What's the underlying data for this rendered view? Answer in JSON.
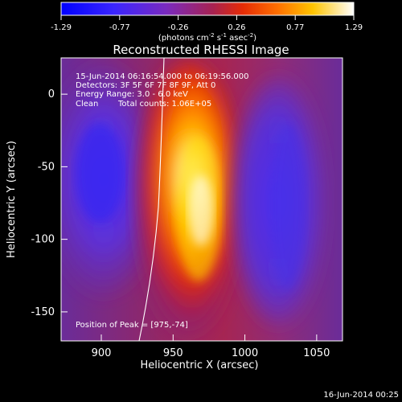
{
  "colorbar": {
    "tick_labels": [
      "-1.29",
      "-0.77",
      "-0.26",
      "0.26",
      "0.77",
      "1.29"
    ],
    "units_html": "(photons cm⁻² s⁻¹ asec⁻²)",
    "units_prefix": "(photons cm",
    "units_exp1": "-2",
    "units_mid1": " s",
    "units_exp2": "-1",
    "units_mid2": " asec",
    "units_exp3": "-2",
    "units_suffix": ")",
    "colors": [
      "#0000ff",
      "#6a1fff",
      "#a22070",
      "#ff3b00",
      "#ffb000",
      "#ffffff"
    ]
  },
  "title": "Reconstructed RHESSI Image",
  "info": {
    "time_range": "15-Jun-2014 06:16:54.000 to 06:19:56.000",
    "detectors": "Detectors: 3F 5F 6F 7F 8F 9F, Att 0",
    "energy": "Energy Range: 3.0 - 6.0 keV",
    "clean_label": "Clean",
    "total_counts": "Total counts: 1.06E+05",
    "peak": "Position of Peak = [975,-74]"
  },
  "axes": {
    "x_label": "Heliocentric X (arcsec)",
    "y_label": "Heliocentric Y (arcsec)",
    "x_ticks": [
      "900",
      "950",
      "1000",
      "1050"
    ],
    "y_ticks": [
      "0",
      "-50",
      "-100",
      "-150"
    ],
    "xlim": [
      872,
      1068
    ],
    "ylim": [
      -170,
      25
    ]
  },
  "footer": {
    "date": "16-Jun-2014 00:25"
  }
}
